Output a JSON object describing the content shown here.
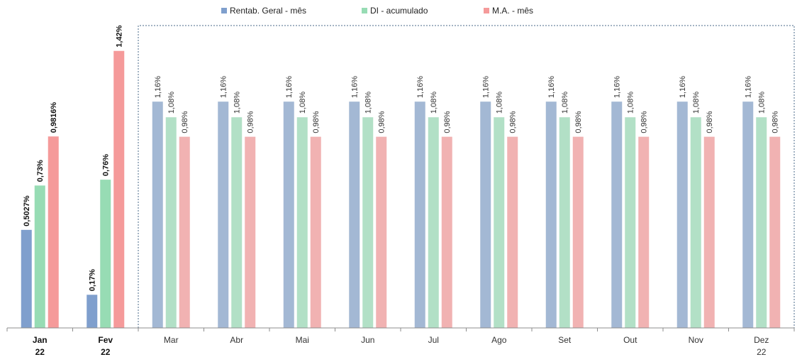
{
  "chart_data": {
    "type": "bar",
    "title": "",
    "xlabel": "",
    "ylabel": "",
    "ylim": [
      0,
      1.55
    ],
    "grid": false,
    "legend_position": "top-center",
    "categories": [
      {
        "line1": "Jan",
        "line2": "22",
        "actual": true
      },
      {
        "line1": "Fev",
        "line2": "22",
        "actual": true
      },
      {
        "line1": "Mar",
        "line2": "",
        "actual": false
      },
      {
        "line1": "Abr",
        "line2": "",
        "actual": false
      },
      {
        "line1": "Mai",
        "line2": "",
        "actual": false
      },
      {
        "line1": "Jun",
        "line2": "",
        "actual": false
      },
      {
        "line1": "Jul",
        "line2": "",
        "actual": false
      },
      {
        "line1": "Ago",
        "line2": "",
        "actual": false
      },
      {
        "line1": "Set",
        "line2": "",
        "actual": false
      },
      {
        "line1": "Out",
        "line2": "",
        "actual": false
      },
      {
        "line1": "Nov",
        "line2": "",
        "actual": false
      },
      {
        "line1": "Dez",
        "line2": "22",
        "actual": false
      }
    ],
    "series": [
      {
        "name": "Rentab. Geral - mês",
        "color": "#7f9fcd",
        "color_projected": "#a3b8d4",
        "values": [
          0.5027,
          0.17,
          1.16,
          1.16,
          1.16,
          1.16,
          1.16,
          1.16,
          1.16,
          1.16,
          1.16,
          1.16
        ],
        "labels": [
          "0,5027%",
          "0,17%",
          "1,16%",
          "1,16%",
          "1,16%",
          "1,16%",
          "1,16%",
          "1,16%",
          "1,16%",
          "1,16%",
          "1,16%",
          "1,16%"
        ]
      },
      {
        "name": "DI - acumulado",
        "color": "#97dcb4",
        "color_projected": "#b2e0c6",
        "values": [
          0.73,
          0.76,
          1.08,
          1.08,
          1.08,
          1.08,
          1.08,
          1.08,
          1.08,
          1.08,
          1.08,
          1.08
        ],
        "labels": [
          "0,73%",
          "0,76%",
          "1,08%",
          "1,08%",
          "1,08%",
          "1,08%",
          "1,08%",
          "1,08%",
          "1,08%",
          "1,08%",
          "1,08%",
          "1,08%"
        ]
      },
      {
        "name": "M.A. - mês",
        "color": "#f59a9a",
        "color_projected": "#f1b2b2",
        "values": [
          0.9816,
          1.42,
          0.98,
          0.98,
          0.98,
          0.98,
          0.98,
          0.98,
          0.98,
          0.98,
          0.98,
          0.98
        ],
        "labels": [
          "0,9816%",
          "1,42%",
          "0,98%",
          "0,98%",
          "0,98%",
          "0,98%",
          "0,98%",
          "0,98%",
          "0,98%",
          "0,98%",
          "0,98%",
          "0,98%"
        ]
      }
    ]
  }
}
